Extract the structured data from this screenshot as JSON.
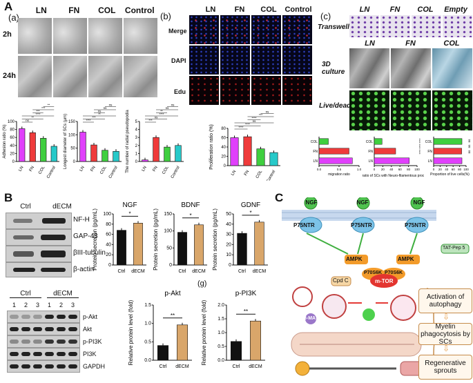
{
  "panelA": {
    "label": "A",
    "sub_a": "(a)",
    "sub_b": "(b)",
    "sub_c": "(c)",
    "cols_a": [
      "LN",
      "FN",
      "COL",
      "Control"
    ],
    "rows_a": [
      "2h",
      "24h"
    ],
    "cols_b": [
      "LN",
      "FN",
      "COL",
      "Control"
    ],
    "rows_b": [
      "Merge",
      "DAPI",
      "Edu"
    ],
    "cols_c1": [
      "LN",
      "FN",
      "COL",
      "Empty"
    ],
    "row_c1": "Transwell",
    "cols_c2": [
      "LN",
      "FN",
      "COL"
    ],
    "row_c2": "3D culture",
    "row_c3": "Live/dead",
    "charts": {
      "adhesion": {
        "ylabel": "Adhesion ratio (%)",
        "cats": [
          "LN",
          "FN",
          "COL",
          "Control"
        ],
        "values": [
          82,
          72,
          58,
          38
        ],
        "ylim": [
          0,
          100
        ],
        "ticks": [
          "0",
          "20",
          "40",
          "60",
          "80",
          "100"
        ],
        "sig": [
          "ns",
          "**",
          "****",
          "***",
          "***",
          "**"
        ],
        "colors": [
          "#e040fb",
          "#ef3b3b",
          "#3fcf3f",
          "#27c9c9"
        ]
      },
      "diameter": {
        "ylabel": "Longest diameter of SCs (μm)",
        "cats": [
          "LN",
          "FN",
          "COL",
          "Control"
        ],
        "values": [
          110,
          62,
          42,
          38
        ],
        "ylim": [
          0,
          150
        ],
        "ticks": [
          "0",
          "50",
          "100",
          "150"
        ],
        "sig": [
          "****",
          "***",
          "**",
          "ns",
          "ns",
          "ns"
        ],
        "colors": [
          "#e040fb",
          "#ef3b3b",
          "#3fcf3f",
          "#27c9c9"
        ]
      },
      "neurites": {
        "ylabel": "The number of radial pseudopodia",
        "cats": [
          "LN",
          "FN",
          "COL",
          "Control"
        ],
        "values": [
          0.2,
          3.0,
          1.8,
          2.0
        ],
        "ylim": [
          0,
          5
        ],
        "ticks": [
          "0",
          "1",
          "2",
          "3",
          "4",
          "5"
        ],
        "sig": [
          "***",
          "ns",
          "****",
          "**",
          "ns",
          "ns"
        ],
        "colors": [
          "#e040fb",
          "#ef3b3b",
          "#3fcf3f",
          "#27c9c9"
        ]
      },
      "prolif": {
        "ylabel": "Proliferation ratio (%)",
        "cats": [
          "LN",
          "FN",
          "COL",
          "Control"
        ],
        "values": [
          60,
          62,
          36,
          28
        ],
        "ylim": [
          0,
          80
        ],
        "ticks": [
          "0",
          "20",
          "40",
          "60",
          "80"
        ],
        "sig": [
          "****",
          "****",
          "ns",
          "****",
          "***",
          "ns"
        ],
        "colors": [
          "#e040fb",
          "#ef3b3b",
          "#3fcf3f",
          "#27c9c9"
        ]
      },
      "migration": {
        "xlabel": "migration ratio",
        "cats": [
          "COL",
          "FN",
          "LN"
        ],
        "values": [
          0.28,
          0.9,
          1.0
        ],
        "ticks": [
          "0.0",
          "0.5",
          "1.0"
        ],
        "colors": [
          "#3fcf3f",
          "#ef3b3b",
          "#e040fb"
        ]
      },
      "neuro": {
        "xlabel": "The ratio of SCs with Neuro-filamentous process (%)",
        "cats": [
          "COL",
          "FN",
          "LN"
        ],
        "values": [
          20,
          55,
          90
        ],
        "ticks": [
          "0",
          "20",
          "40",
          "60",
          "80",
          "100"
        ],
        "sig": [
          "****",
          "****",
          "****"
        ],
        "colors": [
          "#3fcf3f",
          "#ef3b3b",
          "#e040fb"
        ]
      },
      "live": {
        "xlabel": "Proportion of live cells(%)",
        "cats": [
          "COL",
          "FN",
          "LN"
        ],
        "values": [
          96,
          95,
          96
        ],
        "ticks": [
          "0",
          "20",
          "40",
          "60",
          "80",
          "100"
        ],
        "sig": [
          "ns",
          "ns",
          "ns"
        ],
        "colors": [
          "#3fcf3f",
          "#ef3b3b",
          "#e040fb"
        ]
      }
    }
  },
  "panelB": {
    "label": "B",
    "wb_top_cols": [
      "Ctrl",
      "dECM"
    ],
    "wb_top_rows": [
      "NF-H",
      "GAP-43",
      "βIII-tubulin",
      "β-actin"
    ],
    "wb_bot_group": [
      "Ctrl",
      "dECM"
    ],
    "wb_bot_lanes": [
      "1",
      "2",
      "3",
      "1",
      "2",
      "3"
    ],
    "wb_bot_rows": [
      "p-Akt",
      "Akt",
      "p-PI3K",
      "PI3K",
      "GAPDH"
    ],
    "charts": {
      "ngf": {
        "title": "NGF",
        "ylabel": "Protein secretion (pg/mL)",
        "cats": [
          "Ctrl",
          "dECM"
        ],
        "values": [
          68,
          82
        ],
        "ylim": [
          0,
          100
        ],
        "ticks": [
          "0",
          "20",
          "40",
          "60",
          "80",
          "100"
        ],
        "sig": "*"
      },
      "bdnf": {
        "title": "BDNF",
        "ylabel": "Protein secretion (pg/mL)",
        "cats": [
          "Ctrl",
          "dECM"
        ],
        "values": [
          96,
          118
        ],
        "ylim": [
          0,
          150
        ],
        "ticks": [
          "0",
          "50",
          "100",
          "150"
        ],
        "sig": "*"
      },
      "gdnf": {
        "title": "GDNF",
        "ylabel": "Protein secretion (pg/mL)",
        "cats": [
          "Ctrl",
          "dECM"
        ],
        "values": [
          31,
          42
        ],
        "ylim": [
          0,
          50
        ],
        "ticks": [
          "0",
          "10",
          "20",
          "30",
          "40",
          "50"
        ],
        "sig": "*"
      },
      "pakt": {
        "title": "p-Akt",
        "ylabel": "Relative protein level (fold)",
        "cats": [
          "Ctrl",
          "dECM"
        ],
        "values": [
          0.4,
          0.96
        ],
        "ylim": [
          0,
          1.5
        ],
        "ticks": [
          "0.0",
          "0.5",
          "1.0",
          "1.5"
        ],
        "sig": "**"
      },
      "ppi3k": {
        "title": "p-PI3K",
        "sub": "(g)",
        "ylabel": "Relative protein level (fold)",
        "cats": [
          "Ctrl",
          "dECM"
        ],
        "values": [
          0.68,
          1.42
        ],
        "ylim": [
          0,
          2.0
        ],
        "ticks": [
          "0.0",
          "0.5",
          "1.0",
          "1.5",
          "2.0"
        ],
        "sig": "**"
      }
    }
  },
  "panelC": {
    "label": "C",
    "ngf": "NGF",
    "receptor": "P75NTR",
    "ampk": "AMPK",
    "p70": "P70S6K",
    "mtor": "m-TOR",
    "cpdc": "Cpd C",
    "tat": "TAT-Pep 5",
    "ma": "3-MA",
    "boxes": [
      "Activation of autophagy",
      "Myelin phagocytosis by SCs",
      "Regenerative sprouts"
    ]
  }
}
